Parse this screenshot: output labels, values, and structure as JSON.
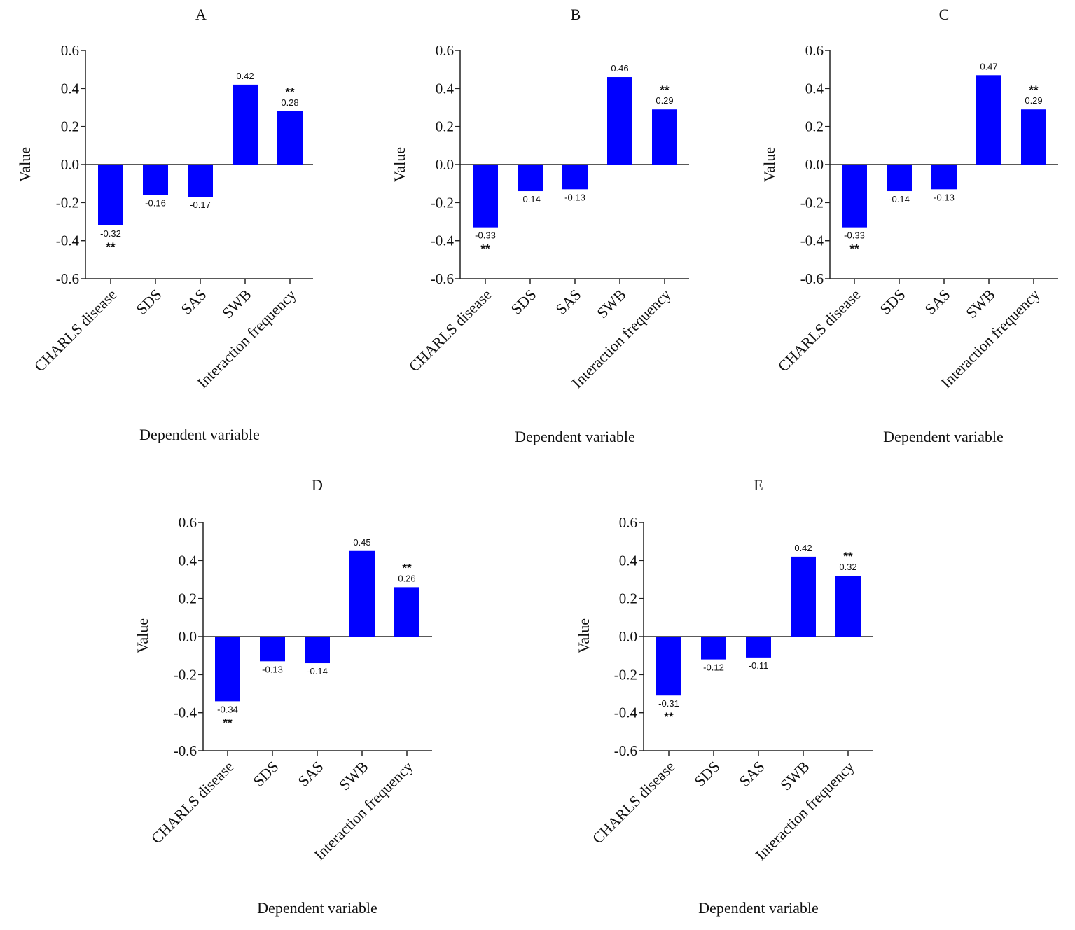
{
  "chart_data": [
    {
      "type": "bar",
      "title": "A",
      "categories": [
        "CHARLS disease",
        "SDS",
        "SAS",
        "SWB",
        "Interaction frequency"
      ],
      "values": [
        -0.32,
        -0.16,
        -0.17,
        0.42,
        0.28
      ],
      "value_labels": [
        "-0.32",
        "-0.16",
        "-0.17",
        "0.42",
        "0.28"
      ],
      "significance": [
        "**",
        "",
        "",
        "",
        "**"
      ],
      "xlabel": "Dependent variable",
      "ylabel": "Value",
      "ylim": [
        -0.6,
        0.6
      ],
      "yticks": [
        "0.6",
        "0.4",
        "0.2",
        "0.0",
        "-0.2",
        "-0.4",
        "-0.6"
      ],
      "ytick_values": [
        0.6,
        0.4,
        0.2,
        0.0,
        -0.2,
        -0.4,
        -0.6
      ],
      "bar_color": "#0000ff"
    },
    {
      "type": "bar",
      "title": "B",
      "categories": [
        "CHARLS disease",
        "SDS",
        "SAS",
        "SWB",
        "Interaction frequency"
      ],
      "values": [
        -0.33,
        -0.14,
        -0.13,
        0.46,
        0.29
      ],
      "value_labels": [
        "-0.33",
        "-0.14",
        "-0.13",
        "0.46",
        "0.29"
      ],
      "significance": [
        "**",
        "",
        "",
        "",
        "**"
      ],
      "xlabel": "Dependent variable",
      "ylabel": "Value",
      "ylim": [
        -0.6,
        0.6
      ],
      "yticks": [
        "0.6",
        "0.4",
        "0.2",
        "0.0",
        "-0.2",
        "-0.4",
        "-0.6"
      ],
      "ytick_values": [
        0.6,
        0.4,
        0.2,
        0.0,
        -0.2,
        -0.4,
        -0.6
      ],
      "bar_color": "#0000ff"
    },
    {
      "type": "bar",
      "title": "C",
      "categories": [
        "CHARLS disease",
        "SDS",
        "SAS",
        "SWB",
        "Interaction frequency"
      ],
      "values": [
        -0.33,
        -0.14,
        -0.13,
        0.47,
        0.29
      ],
      "value_labels": [
        "-0.33",
        "-0.14",
        "-0.13",
        "0.47",
        "0.29"
      ],
      "significance": [
        "**",
        "",
        "",
        "",
        "**"
      ],
      "xlabel": "Dependent variable",
      "ylabel": "Value",
      "ylim": [
        -0.6,
        0.6
      ],
      "yticks": [
        "0.6",
        "0.4",
        "0.2",
        "0.0",
        "-0.2",
        "-0.4",
        "-0.6"
      ],
      "ytick_values": [
        0.6,
        0.4,
        0.2,
        0.0,
        -0.2,
        -0.4,
        -0.6
      ],
      "bar_color": "#0000ff"
    },
    {
      "type": "bar",
      "title": "D",
      "categories": [
        "CHARLS disease",
        "SDS",
        "SAS",
        "SWB",
        "Interaction frequency"
      ],
      "values": [
        -0.34,
        -0.13,
        -0.14,
        0.45,
        0.26
      ],
      "value_labels": [
        "-0.34",
        "-0.13",
        "-0.14",
        "0.45",
        "0.26"
      ],
      "significance": [
        "**",
        "",
        "",
        "",
        "**"
      ],
      "xlabel": "Dependent variable",
      "ylabel": "Value",
      "ylim": [
        -0.6,
        0.6
      ],
      "yticks": [
        "0.6",
        "0.4",
        "0.2",
        "0.0",
        "-0.2",
        "-0.4",
        "-0.6"
      ],
      "ytick_values": [
        0.6,
        0.4,
        0.2,
        0.0,
        -0.2,
        -0.4,
        -0.6
      ],
      "bar_color": "#0000ff"
    },
    {
      "type": "bar",
      "title": "E",
      "categories": [
        "CHARLS disease",
        "SDS",
        "SAS",
        "SWB",
        "Interaction frequency"
      ],
      "values": [
        -0.31,
        -0.12,
        -0.11,
        0.42,
        0.32
      ],
      "value_labels": [
        "-0.31",
        "-0.12",
        "-0.11",
        "0.42",
        "0.32"
      ],
      "significance": [
        "**",
        "",
        "",
        "",
        "**"
      ],
      "xlabel": "Dependent variable",
      "ylabel": "Value",
      "ylim": [
        -0.6,
        0.6
      ],
      "yticks": [
        "0.6",
        "0.4",
        "0.2",
        "0.0",
        "-0.2",
        "-0.4",
        "-0.6"
      ],
      "ytick_values": [
        0.6,
        0.4,
        0.2,
        0.0,
        -0.2,
        -0.4,
        -0.6
      ],
      "bar_color": "#0000ff"
    }
  ]
}
